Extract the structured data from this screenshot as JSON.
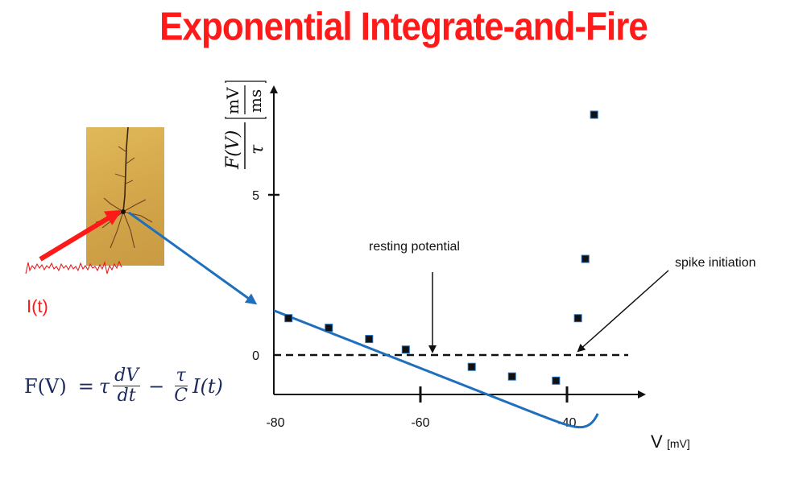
{
  "title": "Exponential Integrate-and-Fire",
  "input_label": "I(t)",
  "equation": {
    "lhs": "F(V)",
    "equals": "=",
    "tau": "τ",
    "dV": "dV",
    "dt": "dt",
    "minus": "−",
    "tau2": "τ",
    "C": "C",
    "I_of_t": "I(t)"
  },
  "colors": {
    "title": "#ff1a1a",
    "curve": "#1f6fbd",
    "input_arrow": "#ff1a1a",
    "pointer_arrow": "#1f6fbd",
    "equation": "#1c2a5e"
  },
  "chart_data": {
    "type": "line",
    "ylabel_main": "F(V)",
    "ylabel_tau": "τ",
    "ylabel_unit_num": "mV",
    "ylabel_unit_den": "ms",
    "xlabel": "V",
    "xunit": "[mV]",
    "x_ticks": [
      -80,
      -60,
      -40
    ],
    "x_tick_labels": [
      "-80",
      "-60",
      "-40"
    ],
    "y_ticks": [
      0,
      5
    ],
    "y_tick_labels": [
      "0",
      "5"
    ],
    "xlim": [
      -80,
      -30
    ],
    "ylim": [
      -1.2,
      8.5
    ],
    "zero_line": "dashed",
    "series": [
      {
        "x": [
          -78,
          -72.5,
          -67,
          -62,
          -53,
          -47.5,
          -41.5,
          -38.5,
          -37.5,
          -36.3
        ],
        "y": [
          1.15,
          0.85,
          0.5,
          0.17,
          -0.37,
          -0.67,
          -0.8,
          1.15,
          3.0,
          7.5
        ]
      }
    ],
    "annotations": [
      {
        "text": "resting potential",
        "x": -59
      },
      {
        "text": "spike initiation",
        "x": -38.6
      }
    ]
  }
}
